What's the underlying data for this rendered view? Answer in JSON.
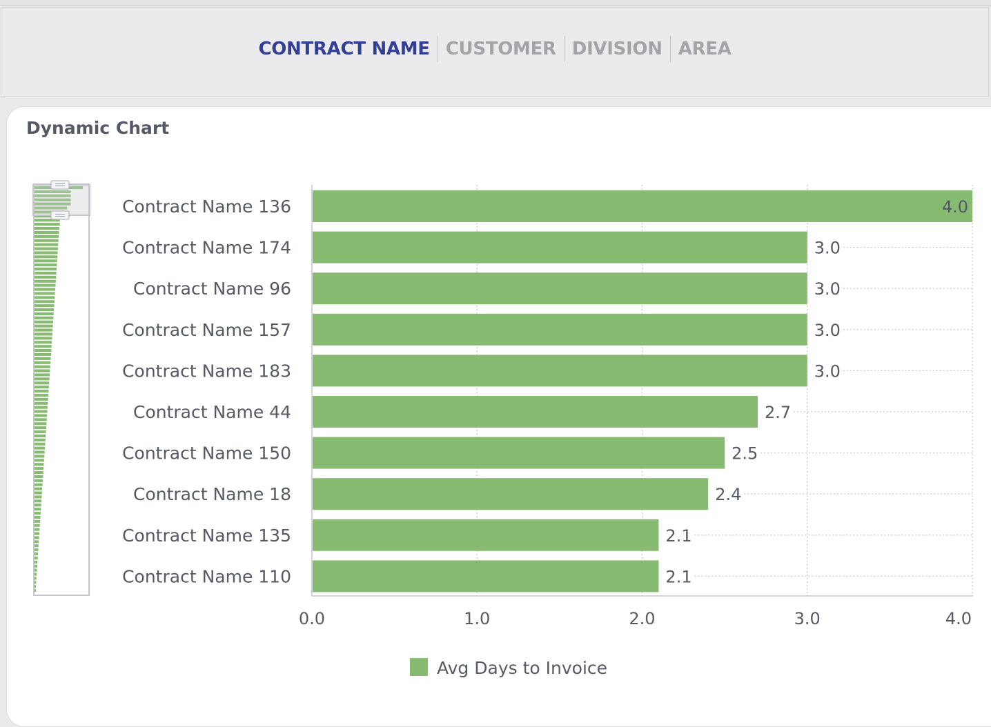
{
  "tabs": [
    {
      "label": "CONTRACT NAME",
      "active": true
    },
    {
      "label": "CUSTOMER",
      "active": false
    },
    {
      "label": "DIVISION",
      "active": false
    },
    {
      "label": "AREA",
      "active": false
    }
  ],
  "card": {
    "title": "Dynamic Chart"
  },
  "colors": {
    "bar": "#88bb72",
    "active_tab": "#333f94",
    "inactive_tab": "#a3a4a8"
  },
  "chart_data": {
    "type": "bar",
    "orientation": "horizontal",
    "categories": [
      "Contract Name 136",
      "Contract Name 174",
      "Contract Name 96",
      "Contract Name 157",
      "Contract Name 183",
      "Contract Name 44",
      "Contract Name 150",
      "Contract Name 18",
      "Contract Name 135",
      "Contract Name 110"
    ],
    "series": [
      {
        "name": "Avg Days to Invoice",
        "values": [
          4.0,
          3.0,
          3.0,
          3.0,
          3.0,
          2.7,
          2.5,
          2.4,
          2.1,
          2.1
        ],
        "color": "#88bb72"
      }
    ],
    "data_labels": [
      "4.0",
      "3.0",
      "3.0",
      "3.0",
      "3.0",
      "2.7",
      "2.5",
      "2.4",
      "2.1",
      "2.1"
    ],
    "xlim": [
      0,
      4
    ],
    "xticks": [
      "0.0",
      "1.0",
      "2.0",
      "3.0",
      "4.0"
    ],
    "grid": "vertical dotted",
    "legend": "bottom-center"
  }
}
